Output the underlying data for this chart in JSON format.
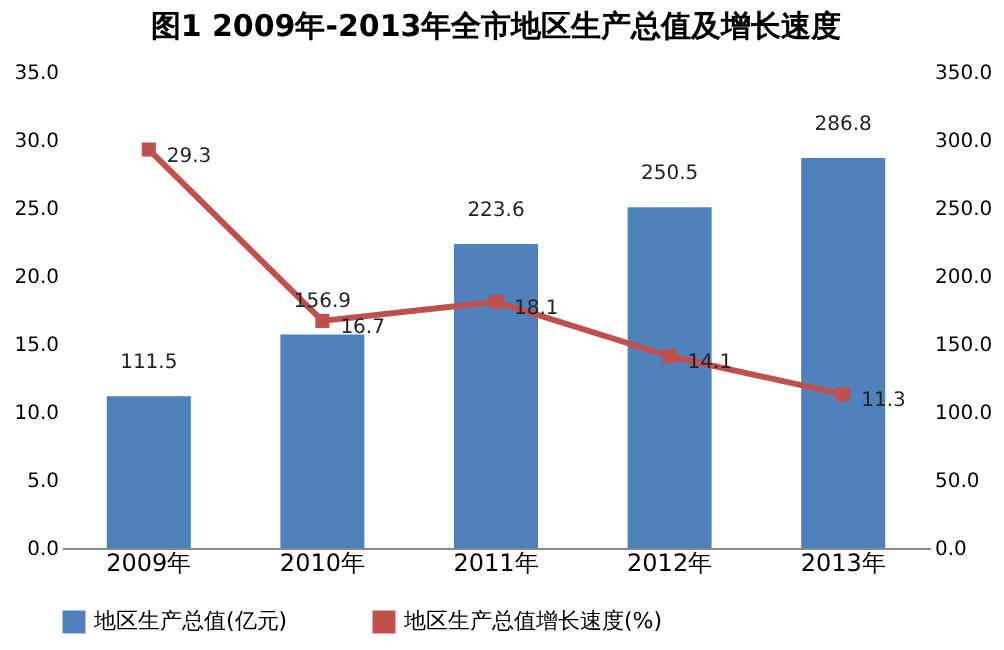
{
  "chart_data": {
    "type": "bar",
    "title": "图1      2009年-2013年全市地区生产总值及增长速度",
    "categories": [
      "2009年",
      "2010年",
      "2011年",
      "2012年",
      "2013年"
    ],
    "series": [
      {
        "name": "地区生产总值(亿元)",
        "type": "bar",
        "axis": "y2",
        "color": "#4f81bd",
        "values": [
          111.5,
          156.9,
          223.6,
          250.5,
          286.8
        ]
      },
      {
        "name": "地区生产总值增长速度(%)",
        "type": "line",
        "color": "#c0504d",
        "values": [
          29.3,
          16.7,
          18.1,
          14.1,
          11.3
        ]
      }
    ],
    "ylim": [
      0,
      35
    ],
    "yticks": [
      {
        "value": 0,
        "label": "0.0"
      },
      {
        "value": 5,
        "label": "5.0"
      },
      {
        "value": 10,
        "label": "10.0"
      },
      {
        "value": 15,
        "label": "15.0"
      },
      {
        "value": 20,
        "label": "20.0"
      },
      {
        "value": 25,
        "label": "25.0"
      },
      {
        "value": 30,
        "label": "30.0"
      },
      {
        "value": 35,
        "label": "35.0"
      }
    ],
    "y2lim": [
      0,
      350
    ],
    "y2ticks": [
      {
        "value": 0,
        "label": "0.0"
      },
      {
        "value": 50,
        "label": "50.0"
      },
      {
        "value": 100,
        "label": "100.0"
      },
      {
        "value": 150,
        "label": "150.0"
      },
      {
        "value": 200,
        "label": "200.0"
      },
      {
        "value": 250,
        "label": "250.0"
      },
      {
        "value": 300,
        "label": "300.0"
      },
      {
        "value": 350,
        "label": "350.0"
      }
    ],
    "data_labels": true,
    "legend": "bottom",
    "marker": "square",
    "grid": false
  }
}
